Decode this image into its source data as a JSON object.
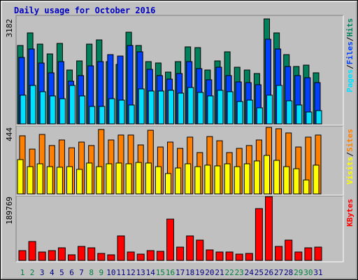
{
  "chart_data": [
    {
      "type": "bar",
      "title": "Daily usage for October 2016",
      "ylim": [
        0,
        3182
      ],
      "yticks": [
        3182
      ],
      "legend_separator": "/",
      "series": [
        {
          "name": "Hits",
          "color": "#00805c",
          "values": [
            2376,
            2758,
            2418,
            2121,
            2440,
            1633,
            1909,
            2418,
            2546,
            1888,
            1803,
            2779,
            2376,
            1888,
            1846,
            1570,
            1888,
            2334,
            2312,
            1633,
            1909,
            2185,
            1718,
            1633,
            1527,
            3182,
            2758,
            2100,
            1740,
            1782,
            1549
          ]
        },
        {
          "name": "Files",
          "color": "#0040ff",
          "values": [
            2015,
            2270,
            1845,
            1548,
            1888,
            1294,
            1464,
            1760,
            1888,
            2100,
            2057,
            2376,
            2185,
            1654,
            1464,
            1357,
            1527,
            1888,
            1676,
            1336,
            1718,
            1464,
            1273,
            1251,
            1188,
            2566,
            2270,
            1739,
            1464,
            1400,
            1251
          ]
        },
        {
          "name": "Pages",
          "color": "#00e0ff",
          "values": [
            870,
            1167,
            976,
            848,
            764,
            1167,
            848,
            530,
            530,
            764,
            721,
            573,
            1061,
            997,
            997,
            1018,
            933,
            1103,
            954,
            848,
            1018,
            976,
            679,
            721,
            488,
            870,
            1167,
            700,
            573,
            361,
            403
          ]
        }
      ]
    },
    {
      "type": "bar",
      "ylim": [
        0,
        444
      ],
      "yticks": [
        444
      ],
      "series": [
        {
          "name": "Sites",
          "color": "#ff8000",
          "values": [
            388,
            299,
            397,
            323,
            360,
            308,
            346,
            323,
            430,
            360,
            393,
            393,
            327,
            425,
            313,
            346,
            304,
            379,
            276,
            383,
            355,
            276,
            304,
            323,
            360,
            444,
            435,
            407,
            313,
            379,
            393
          ]
        },
        {
          "name": "Visits",
          "color": "#ffff00",
          "values": [
            229,
            182,
            201,
            182,
            178,
            182,
            164,
            206,
            182,
            201,
            206,
            201,
            210,
            206,
            182,
            136,
            173,
            201,
            182,
            192,
            187,
            201,
            182,
            201,
            220,
            257,
            224,
            182,
            168,
            93,
            192
          ]
        }
      ]
    },
    {
      "type": "bar",
      "ylim": [
        0,
        189769
      ],
      "yticks": [
        189769
      ],
      "categories": [
        "1",
        "2",
        "3",
        "4",
        "5",
        "6",
        "7",
        "8",
        "9",
        "10",
        "11",
        "12",
        "13",
        "14",
        "15",
        "16",
        "17",
        "18",
        "19",
        "20",
        "21",
        "22",
        "23",
        "24",
        "25",
        "26",
        "27",
        "28",
        "29",
        "30",
        "31"
      ],
      "category_colors": [
        "#008040",
        "#008040",
        "#000080",
        "#000080",
        "#000080",
        "#000080",
        "#000080",
        "#008040",
        "#008040",
        "#000080",
        "#000080",
        "#000080",
        "#000080",
        "#000080",
        "#008040",
        "#008040",
        "#000080",
        "#000080",
        "#000080",
        "#000080",
        "#000080",
        "#008040",
        "#008040",
        "#000080",
        "#000080",
        "#000080",
        "#000080",
        "#000080",
        "#008040",
        "#008040",
        "#000080"
      ],
      "series": [
        {
          "name": "KBytes",
          "color": "#ff0000",
          "values": [
            29190,
            56300,
            25020,
            29190,
            37530,
            16680,
            41700,
            37530,
            20850,
            16680,
            72980,
            25020,
            18770,
            29190,
            27110,
            123020,
            39620,
            72980,
            60470,
            31280,
            25020,
            25020,
            18770,
            20850,
            154290,
            189769,
            41700,
            60470,
            25020,
            37530,
            39620
          ]
        }
      ]
    }
  ]
}
